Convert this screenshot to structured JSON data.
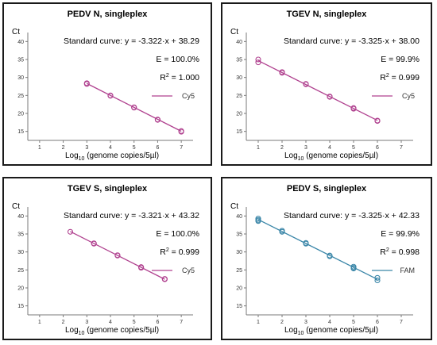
{
  "chart_data": [
    {
      "type": "scatter",
      "title": "PEDV N, singleplex",
      "ylabel": "Ct",
      "xlabel_base": "Log",
      "xlabel_sub": "10",
      "xlabel_rest": " (genome copies/5µl)",
      "equation": "Standard curve: y = -3.322·x + 38.29",
      "efficiency": "E = 100.0%",
      "r2_base": "R",
      "r2_sup": "2",
      "r2_rest": " = 1.000",
      "legend": "Cy5",
      "color": "#b0418f",
      "xlim": [
        0.5,
        7.5
      ],
      "ylim": [
        12.5,
        42.5
      ],
      "xticks": [
        1,
        2,
        3,
        4,
        5,
        6,
        7
      ],
      "yticks": [
        15,
        20,
        25,
        30,
        35,
        40
      ],
      "slope": -3.322,
      "intercept": 38.29,
      "fit_range": [
        3,
        7
      ],
      "x": [
        3,
        3,
        4,
        4,
        5,
        5,
        6,
        6,
        7,
        7
      ],
      "y": [
        28.4,
        28.2,
        25.0,
        24.9,
        21.7,
        21.6,
        18.3,
        18.2,
        15.1,
        14.9
      ]
    },
    {
      "type": "scatter",
      "title": "TGEV N, singleplex",
      "ylabel": "Ct",
      "xlabel_base": "Log",
      "xlabel_sub": "10",
      "xlabel_rest": " (genome copies/5µl)",
      "equation": "Standard curve: y = -3.325·x + 38.00",
      "efficiency": "E = 99.9%",
      "r2_base": "R",
      "r2_sup": "2",
      "r2_rest": " = 0.999",
      "legend": "Cy5",
      "color": "#b0418f",
      "xlim": [
        0.5,
        7.5
      ],
      "ylim": [
        12.5,
        42.5
      ],
      "xticks": [
        1,
        2,
        3,
        4,
        5,
        6,
        7
      ],
      "yticks": [
        15,
        20,
        25,
        30,
        35,
        40
      ],
      "slope": -3.325,
      "intercept": 38.0,
      "fit_range": [
        1,
        6
      ],
      "x": [
        1,
        1,
        2,
        2,
        3,
        3,
        4,
        4,
        5,
        5,
        6,
        6
      ],
      "y": [
        35.0,
        34.2,
        31.5,
        31.3,
        28.2,
        28.1,
        24.7,
        24.6,
        21.5,
        21.3,
        18.0,
        17.9
      ]
    },
    {
      "type": "scatter",
      "title": "TGEV S, singleplex",
      "ylabel": "Ct",
      "xlabel_base": "Log",
      "xlabel_sub": "10",
      "xlabel_rest": " (genome copies/5µl)",
      "equation": "Standard curve: y = -3.321·x + 43.32",
      "efficiency": "E = 100.0%",
      "r2_base": "R",
      "r2_sup": "2",
      "r2_rest": " = 0.999",
      "legend": "Cy5",
      "color": "#b0418f",
      "xlim": [
        0.5,
        7.5
      ],
      "ylim": [
        12.5,
        42.5
      ],
      "xticks": [
        1,
        2,
        3,
        4,
        5,
        6,
        7
      ],
      "yticks": [
        15,
        20,
        25,
        30,
        35,
        40
      ],
      "slope": -3.321,
      "intercept": 43.32,
      "fit_range": [
        2.3,
        6.3
      ],
      "x": [
        2.3,
        3.3,
        3.3,
        4.3,
        4.3,
        5.3,
        5.3,
        6.3,
        6.3
      ],
      "y": [
        35.6,
        32.4,
        32.3,
        29.1,
        29.0,
        25.8,
        25.6,
        22.5,
        22.4
      ]
    },
    {
      "type": "scatter",
      "title": "PEDV S, singleplex",
      "ylabel": "Ct",
      "xlabel_base": "Log",
      "xlabel_sub": "10",
      "xlabel_rest": " (genome copies/5µl)",
      "equation": "Standard curve: y = -3.325·x + 42.33",
      "efficiency": "E = 99.9%",
      "r2_base": "R",
      "r2_sup": "2",
      "r2_rest": " = 0.998",
      "legend": "FAM",
      "color": "#3a86a8",
      "xlim": [
        0.5,
        7.5
      ],
      "ylim": [
        12.5,
        42.5
      ],
      "xticks": [
        1,
        2,
        3,
        4,
        5,
        6,
        7
      ],
      "yticks": [
        15,
        20,
        25,
        30,
        35,
        40
      ],
      "slope": -3.325,
      "intercept": 42.33,
      "fit_range": [
        1,
        6
      ],
      "x": [
        1,
        1,
        1,
        2,
        2,
        3,
        3,
        4,
        4,
        5,
        5,
        5,
        6,
        6
      ],
      "y": [
        39.3,
        38.9,
        38.6,
        35.9,
        35.6,
        32.5,
        32.3,
        29.0,
        28.8,
        25.9,
        25.6,
        25.4,
        22.8,
        22.1
      ]
    }
  ]
}
